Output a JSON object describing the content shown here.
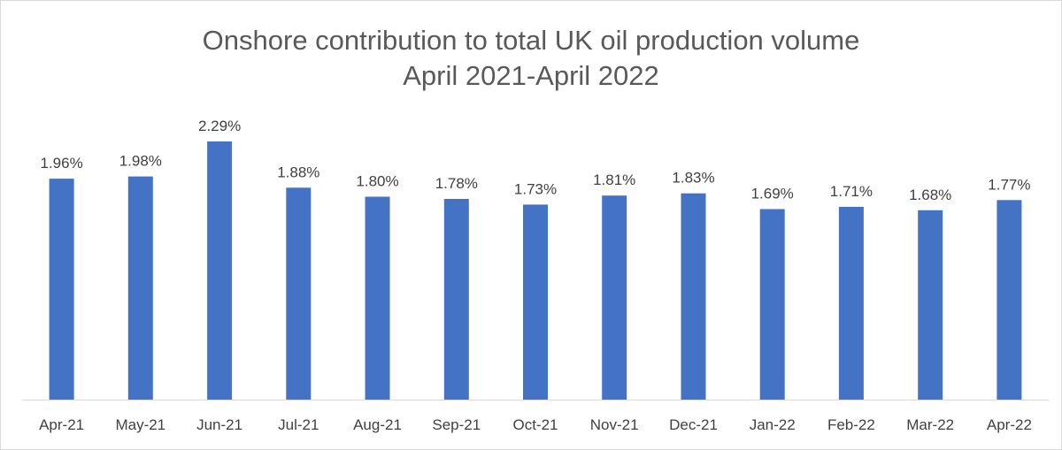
{
  "chart_data": {
    "type": "bar",
    "title": "Onshore contribution to total UK oil production volume",
    "subtitle": "April 2021-April 2022",
    "categories": [
      "Apr-21",
      "May-21",
      "Jun-21",
      "Jul-21",
      "Aug-21",
      "Sep-21",
      "Oct-21",
      "Nov-21",
      "Dec-21",
      "Jan-22",
      "Feb-22",
      "Mar-22",
      "Apr-22"
    ],
    "values": [
      1.96,
      1.98,
      2.29,
      1.88,
      1.8,
      1.78,
      1.73,
      1.81,
      1.83,
      1.69,
      1.71,
      1.68,
      1.77
    ],
    "data_labels": [
      "1.96%",
      "1.98%",
      "2.29%",
      "1.88%",
      "1.80%",
      "1.78%",
      "1.73%",
      "1.81%",
      "1.83%",
      "1.69%",
      "1.71%",
      "1.68%",
      "1.77%"
    ],
    "xlabel": "",
    "ylabel": "",
    "ylim": [
      0,
      2.5
    ],
    "grid": false,
    "legend": "none",
    "bar_color": "#4472c4"
  }
}
